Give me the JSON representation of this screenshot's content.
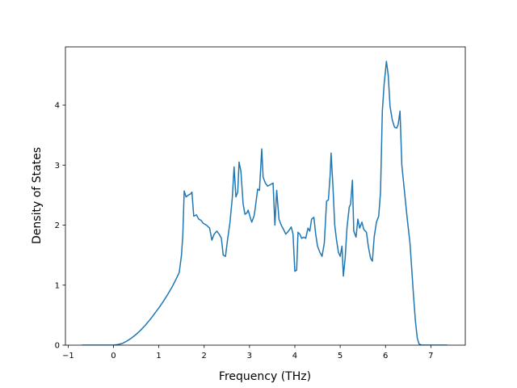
{
  "chart_data": {
    "type": "line",
    "title": "",
    "xlabel": "Frequency (THz)",
    "ylabel": "Density of States",
    "xlim": [
      -1.06,
      7.76
    ],
    "ylim": [
      0,
      4.97
    ],
    "xticks": [
      -1,
      0,
      1,
      2,
      3,
      4,
      5,
      6,
      7
    ],
    "yticks": [
      0,
      1,
      2,
      3,
      4
    ],
    "xtick_labels": [
      "−1",
      "0",
      "1",
      "2",
      "3",
      "4",
      "5",
      "6",
      "7"
    ],
    "ytick_labels": [
      "0",
      "1",
      "2",
      "3",
      "4"
    ],
    "grid": false,
    "legend": "none",
    "series_color": "#1f77b4",
    "series": [
      {
        "points": [
          [
            -0.68,
            0.0
          ],
          [
            -0.45,
            0.0
          ],
          [
            -0.2,
            0.0
          ],
          [
            0.0,
            0.0
          ],
          [
            0.1,
            0.01
          ],
          [
            0.2,
            0.03
          ],
          [
            0.3,
            0.07
          ],
          [
            0.4,
            0.12
          ],
          [
            0.5,
            0.18
          ],
          [
            0.6,
            0.25
          ],
          [
            0.7,
            0.33
          ],
          [
            0.8,
            0.42
          ],
          [
            0.9,
            0.52
          ],
          [
            1.0,
            0.62
          ],
          [
            1.1,
            0.73
          ],
          [
            1.2,
            0.85
          ],
          [
            1.3,
            0.98
          ],
          [
            1.38,
            1.1
          ],
          [
            1.45,
            1.21
          ],
          [
            1.5,
            1.5
          ],
          [
            1.53,
            1.85
          ],
          [
            1.56,
            2.57
          ],
          [
            1.6,
            2.47
          ],
          [
            1.65,
            2.5
          ],
          [
            1.7,
            2.52
          ],
          [
            1.73,
            2.55
          ],
          [
            1.77,
            2.15
          ],
          [
            1.83,
            2.17
          ],
          [
            1.88,
            2.1
          ],
          [
            1.93,
            2.08
          ],
          [
            1.98,
            2.03
          ],
          [
            2.05,
            2.0
          ],
          [
            2.12,
            1.95
          ],
          [
            2.17,
            1.75
          ],
          [
            2.22,
            1.85
          ],
          [
            2.28,
            1.9
          ],
          [
            2.33,
            1.85
          ],
          [
            2.38,
            1.78
          ],
          [
            2.42,
            1.5
          ],
          [
            2.47,
            1.48
          ],
          [
            2.52,
            1.78
          ],
          [
            2.57,
            2.05
          ],
          [
            2.62,
            2.45
          ],
          [
            2.66,
            2.97
          ],
          [
            2.7,
            2.47
          ],
          [
            2.74,
            2.55
          ],
          [
            2.77,
            3.05
          ],
          [
            2.81,
            2.9
          ],
          [
            2.86,
            2.35
          ],
          [
            2.9,
            2.18
          ],
          [
            2.94,
            2.2
          ],
          [
            2.97,
            2.25
          ],
          [
            3.02,
            2.12
          ],
          [
            3.05,
            2.05
          ],
          [
            3.1,
            2.15
          ],
          [
            3.13,
            2.3
          ],
          [
            3.18,
            2.6
          ],
          [
            3.22,
            2.58
          ],
          [
            3.27,
            3.27
          ],
          [
            3.3,
            2.8
          ],
          [
            3.35,
            2.7
          ],
          [
            3.4,
            2.65
          ],
          [
            3.45,
            2.67
          ],
          [
            3.52,
            2.7
          ],
          [
            3.56,
            2.0
          ],
          [
            3.6,
            2.58
          ],
          [
            3.65,
            2.1
          ],
          [
            3.7,
            2.0
          ],
          [
            3.75,
            1.93
          ],
          [
            3.8,
            1.85
          ],
          [
            3.86,
            1.9
          ],
          [
            3.92,
            1.97
          ],
          [
            3.96,
            1.85
          ],
          [
            4.0,
            1.23
          ],
          [
            4.04,
            1.25
          ],
          [
            4.07,
            1.88
          ],
          [
            4.11,
            1.85
          ],
          [
            4.15,
            1.78
          ],
          [
            4.2,
            1.8
          ],
          [
            4.24,
            1.78
          ],
          [
            4.29,
            1.95
          ],
          [
            4.33,
            1.9
          ],
          [
            4.37,
            2.1
          ],
          [
            4.42,
            2.13
          ],
          [
            4.46,
            1.85
          ],
          [
            4.5,
            1.65
          ],
          [
            4.55,
            1.55
          ],
          [
            4.6,
            1.48
          ],
          [
            4.65,
            1.7
          ],
          [
            4.7,
            2.4
          ],
          [
            4.74,
            2.42
          ],
          [
            4.78,
            2.85
          ],
          [
            4.8,
            3.2
          ],
          [
            4.84,
            2.65
          ],
          [
            4.88,
            2.0
          ],
          [
            4.92,
            1.75
          ],
          [
            4.96,
            1.55
          ],
          [
            5.0,
            1.48
          ],
          [
            5.04,
            1.65
          ],
          [
            5.07,
            1.15
          ],
          [
            5.11,
            1.45
          ],
          [
            5.15,
            1.95
          ],
          [
            5.2,
            2.3
          ],
          [
            5.23,
            2.35
          ],
          [
            5.27,
            2.75
          ],
          [
            5.3,
            1.9
          ],
          [
            5.35,
            1.8
          ],
          [
            5.39,
            2.1
          ],
          [
            5.43,
            1.95
          ],
          [
            5.48,
            2.05
          ],
          [
            5.52,
            1.93
          ],
          [
            5.58,
            1.88
          ],
          [
            5.62,
            1.65
          ],
          [
            5.67,
            1.45
          ],
          [
            5.71,
            1.4
          ],
          [
            5.75,
            1.8
          ],
          [
            5.8,
            2.05
          ],
          [
            5.85,
            2.15
          ],
          [
            5.89,
            2.55
          ],
          [
            5.93,
            3.9
          ],
          [
            5.97,
            4.35
          ],
          [
            6.02,
            4.73
          ],
          [
            6.06,
            4.5
          ],
          [
            6.1,
            3.98
          ],
          [
            6.15,
            3.75
          ],
          [
            6.2,
            3.63
          ],
          [
            6.25,
            3.62
          ],
          [
            6.28,
            3.68
          ],
          [
            6.32,
            3.9
          ],
          [
            6.36,
            3.0
          ],
          [
            6.42,
            2.55
          ],
          [
            6.48,
            2.1
          ],
          [
            6.54,
            1.7
          ],
          [
            6.58,
            1.25
          ],
          [
            6.62,
            0.8
          ],
          [
            6.66,
            0.4
          ],
          [
            6.7,
            0.12
          ],
          [
            6.74,
            0.02
          ],
          [
            6.8,
            0.0
          ],
          [
            7.0,
            0.0
          ],
          [
            7.2,
            0.0
          ],
          [
            7.35,
            0.0
          ]
        ]
      }
    ]
  }
}
